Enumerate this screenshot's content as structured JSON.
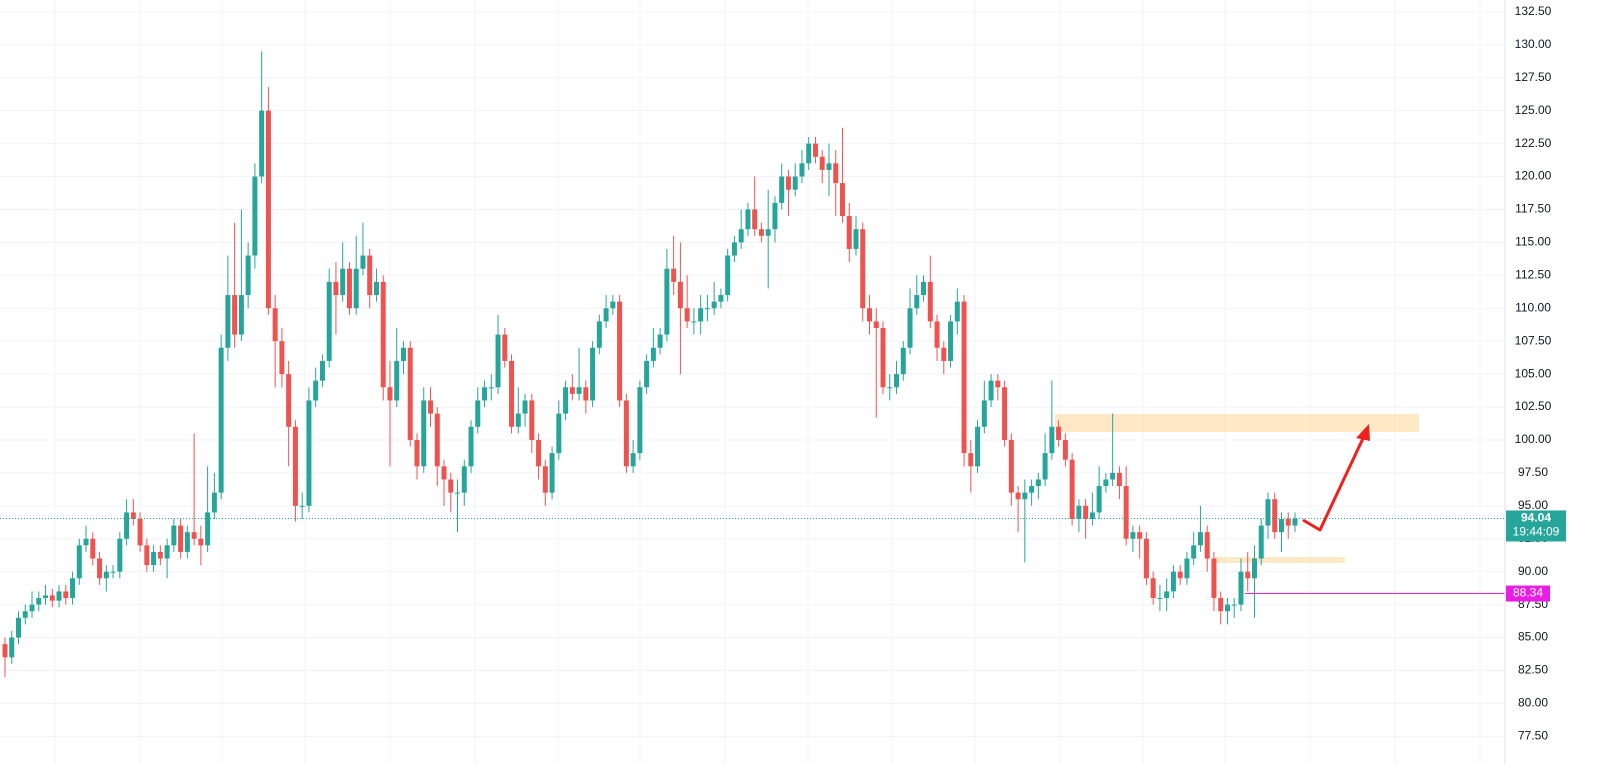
{
  "chart_data": {
    "type": "candlestick",
    "up_color": "#26a69a",
    "down_color": "#ef5350",
    "ylim": [
      75.4,
      133.4
    ],
    "yticks": [
      {
        "value": 77.5,
        "label": "77.50"
      },
      {
        "value": 80,
        "label": "80.00"
      },
      {
        "value": 82.5,
        "label": "82.50"
      },
      {
        "value": 85,
        "label": "85.00"
      },
      {
        "value": 87.5,
        "label": "87.50"
      },
      {
        "value": 90,
        "label": "90.00"
      },
      {
        "value": 92.5,
        "label": "92.50"
      },
      {
        "value": 95,
        "label": "95.00"
      },
      {
        "value": 97.5,
        "label": "97.50"
      },
      {
        "value": 100,
        "label": "100.00"
      },
      {
        "value": 102.5,
        "label": "102.50"
      },
      {
        "value": 105,
        "label": "105.00"
      },
      {
        "value": 107.5,
        "label": "107.50"
      },
      {
        "value": 110,
        "label": "110.00"
      },
      {
        "value": 112.5,
        "label": "112.50"
      },
      {
        "value": 115,
        "label": "115.00"
      },
      {
        "value": 117.5,
        "label": "117.50"
      },
      {
        "value": 120,
        "label": "120.00"
      },
      {
        "value": 122.5,
        "label": "122.50"
      },
      {
        "value": 125,
        "label": "125.00"
      },
      {
        "value": 127.5,
        "label": "127.50"
      },
      {
        "value": 130,
        "label": "130.00"
      },
      {
        "value": 132.5,
        "label": "132.50"
      }
    ],
    "grid": true,
    "last_price": {
      "value": 94.04,
      "countdown": "19:44:09",
      "color": "#26a69a"
    },
    "level": {
      "value": 88.34,
      "color": "#e91ee3"
    },
    "open": [
      84.5,
      83.5,
      85,
      86.5,
      87,
      87.5,
      88,
      88.2,
      87.8,
      88.5,
      88,
      89.5,
      92,
      92.5,
      91,
      89.5,
      90,
      90,
      92.5,
      94.5,
      94,
      92,
      90.5,
      91.5,
      91,
      92,
      93.5,
      91.5,
      93,
      92.5,
      92,
      94.5,
      96,
      107,
      111,
      108,
      111,
      114,
      120,
      125,
      110,
      107.5,
      105,
      101,
      95,
      95,
      103,
      104.5,
      106,
      112,
      111,
      113,
      110,
      113,
      114,
      111,
      112,
      104,
      103,
      106,
      107,
      100,
      98,
      103,
      102,
      98,
      97,
      96,
      96,
      98,
      101,
      103,
      104,
      104,
      108,
      106,
      101,
      102,
      103,
      100,
      98,
      96,
      99,
      102,
      104,
      103.5,
      104,
      103,
      107,
      109,
      110,
      110.5,
      103,
      98,
      99,
      104,
      106,
      107,
      108,
      113,
      112,
      110,
      109,
      109,
      110,
      110,
      110.5,
      111,
      114,
      115,
      116,
      117.5,
      116,
      115.5,
      116,
      118,
      120,
      119,
      120,
      121,
      122.5,
      121.5,
      120.5,
      121,
      119.5,
      117,
      114.5,
      116,
      110,
      109,
      108.5,
      104,
      104,
      105,
      107,
      110,
      111,
      112,
      109,
      107,
      106,
      109,
      110.5,
      99,
      98,
      101,
      103,
      104.5,
      104,
      100,
      96,
      95.5,
      96,
      96.5,
      97,
      99,
      101,
      100,
      98.5,
      94,
      95,
      94,
      94.5,
      96.5,
      97,
      97.5,
      96.5,
      92.5,
      93,
      92.5,
      89.5,
      88,
      88,
      88.5,
      90,
      89.5,
      91,
      92,
      93,
      91,
      88,
      87,
      87.5,
      87.5,
      90,
      89.5,
      91,
      93.5,
      95.5,
      93,
      94,
      93.5
    ],
    "high": [
      85,
      85.5,
      87,
      87.5,
      88.5,
      88.5,
      89,
      88.7,
      89,
      89,
      90,
      92.5,
      93.5,
      93,
      91.5,
      90.5,
      90.5,
      93,
      95.5,
      95.5,
      94.5,
      92.5,
      92,
      92,
      92.5,
      94,
      94,
      93.5,
      100.5,
      93.5,
      98,
      97.5,
      108,
      114,
      116.5,
      117.5,
      115,
      121,
      129.5,
      126.8,
      111,
      108.5,
      106,
      101.5,
      96,
      104,
      105.5,
      106.5,
      113,
      113.5,
      115,
      113.5,
      115.5,
      116.5,
      114.5,
      113,
      112.5,
      106,
      108.5,
      107.5,
      107.5,
      100.5,
      104,
      104,
      102.5,
      98.5,
      97.5,
      97,
      98.5,
      101.5,
      104,
      104.5,
      105,
      109.5,
      108.5,
      106.5,
      104,
      103.5,
      103.5,
      100.5,
      98.5,
      99.5,
      103,
      104.5,
      105,
      107,
      104.5,
      107.5,
      109.5,
      111,
      111,
      111,
      103.5,
      100,
      104.5,
      106.5,
      108.5,
      108.5,
      114.5,
      115.5,
      115,
      112.5,
      110,
      111,
      111,
      112,
      111.5,
      114.5,
      115.5,
      117.5,
      118,
      120,
      116.5,
      119,
      118.5,
      121,
      120.5,
      121,
      122,
      123,
      123,
      122,
      122.5,
      122,
      123.7,
      118,
      117,
      116.5,
      111,
      110,
      109,
      105,
      106,
      107.5,
      111.5,
      112.5,
      112.5,
      114,
      109.5,
      107.5,
      109.5,
      111.5,
      111,
      100,
      101.5,
      104.5,
      105,
      105,
      104.5,
      100.5,
      96.5,
      97,
      97,
      97.5,
      100.5,
      104.5,
      101.5,
      100.5,
      99,
      95.5,
      95.5,
      96,
      98,
      97.5,
      102,
      98,
      98,
      93.5,
      93.5,
      93,
      90,
      89,
      89.5,
      90.5,
      90.5,
      91.5,
      93,
      95,
      93.5,
      91.5,
      88.5,
      88,
      88,
      91,
      91.5,
      92,
      94,
      96,
      96,
      94.5,
      94.5,
      94.5
    ],
    "low": [
      82,
      83,
      84.5,
      86,
      86.5,
      87,
      87.5,
      87.3,
      87.3,
      87.5,
      87.5,
      89,
      91.5,
      90.5,
      89,
      88.5,
      89.5,
      89.5,
      92,
      93.5,
      91.5,
      90,
      90,
      90.5,
      89.5,
      91.5,
      91,
      91,
      92,
      90.5,
      91.5,
      94,
      95.5,
      106,
      107,
      107.5,
      110,
      113,
      119.5,
      109.5,
      104,
      104,
      98,
      93.8,
      94,
      94.5,
      102.5,
      104,
      105.5,
      108,
      110.5,
      109.5,
      109.5,
      112.5,
      110,
      110.5,
      103,
      98,
      102.5,
      105,
      99.5,
      97,
      97.5,
      101,
      96.5,
      95,
      94.5,
      93,
      95,
      97.5,
      100.5,
      102.5,
      103,
      103.5,
      105.5,
      100.5,
      100.5,
      101,
      99,
      97,
      95,
      95.5,
      98.5,
      101.5,
      103,
      103,
      102,
      102.5,
      106.5,
      108.5,
      109.5,
      102.5,
      97.5,
      97.5,
      98.5,
      103.5,
      105.5,
      106.5,
      107.5,
      111,
      105,
      108.5,
      108,
      108,
      109,
      109.5,
      110,
      110.5,
      113.5,
      114.5,
      115.5,
      115.5,
      115,
      111.5,
      115,
      117.5,
      117,
      118.5,
      119.5,
      120.5,
      121,
      119.5,
      118.5,
      117,
      116.5,
      113.5,
      114,
      109,
      108,
      101.7,
      103.5,
      103,
      103.5,
      104.5,
      106.5,
      109.5,
      110.5,
      108.5,
      106,
      105,
      105.5,
      108,
      98,
      96,
      97.5,
      100.5,
      102.5,
      103,
      99.5,
      95,
      93,
      90.7,
      95,
      95.5,
      96.5,
      98.5,
      99.5,
      98,
      93.5,
      93,
      92.5,
      93.5,
      94,
      96,
      96.5,
      95.5,
      92,
      91.5,
      91,
      89,
      87.5,
      87,
      87,
      88,
      89,
      89,
      90.5,
      91.5,
      90,
      87,
      86,
      86,
      86.5,
      87,
      88.5,
      86.5,
      90.5,
      92.5,
      92.5,
      91.5,
      92.5,
      93
    ],
    "close": [
      83.5,
      85,
      86.5,
      87,
      87.5,
      88,
      88.2,
      87.8,
      88.5,
      88,
      89.5,
      92,
      92.5,
      91,
      89.5,
      90,
      90,
      92.5,
      94.5,
      94,
      92,
      90.5,
      91.5,
      91,
      92,
      93.5,
      91.5,
      93,
      92.5,
      92,
      94.5,
      96,
      107,
      111,
      108,
      111,
      114,
      120,
      125,
      110,
      107.5,
      105,
      101,
      95,
      95,
      103,
      104.5,
      106,
      112,
      111,
      113,
      110,
      113,
      114,
      111,
      112,
      104,
      103,
      106,
      107,
      100,
      98,
      103,
      102,
      98,
      97,
      96,
      96,
      98,
      101,
      103,
      104,
      104,
      108,
      106,
      101,
      102,
      103,
      100,
      98,
      96,
      99,
      102,
      104,
      103.5,
      104,
      103,
      107,
      109,
      110,
      110.5,
      103,
      98,
      99,
      104,
      106,
      107,
      108,
      113,
      112,
      110,
      109,
      109,
      110,
      110,
      110.5,
      111,
      114,
      115,
      116,
      117.5,
      116,
      115.5,
      116,
      118,
      120,
      119,
      120,
      121,
      122.5,
      121.5,
      120.5,
      121,
      119.5,
      117,
      114.5,
      116,
      110,
      109,
      108.5,
      104,
      104,
      105,
      107,
      110,
      111,
      112,
      109,
      107,
      106,
      109,
      110.5,
      99,
      98,
      101,
      103,
      104.5,
      104,
      100,
      96,
      95.5,
      96,
      96.5,
      97,
      99,
      101,
      100,
      98.5,
      94,
      95,
      94,
      94.5,
      96.5,
      97,
      97.5,
      96.5,
      92.5,
      93,
      92.5,
      89.5,
      88,
      88,
      88.5,
      90,
      89.5,
      91,
      92,
      93,
      91,
      88,
      87,
      87.5,
      87.5,
      90,
      89.5,
      91,
      93.5,
      95.5,
      93,
      94,
      93.5,
      94.04
    ]
  }
}
